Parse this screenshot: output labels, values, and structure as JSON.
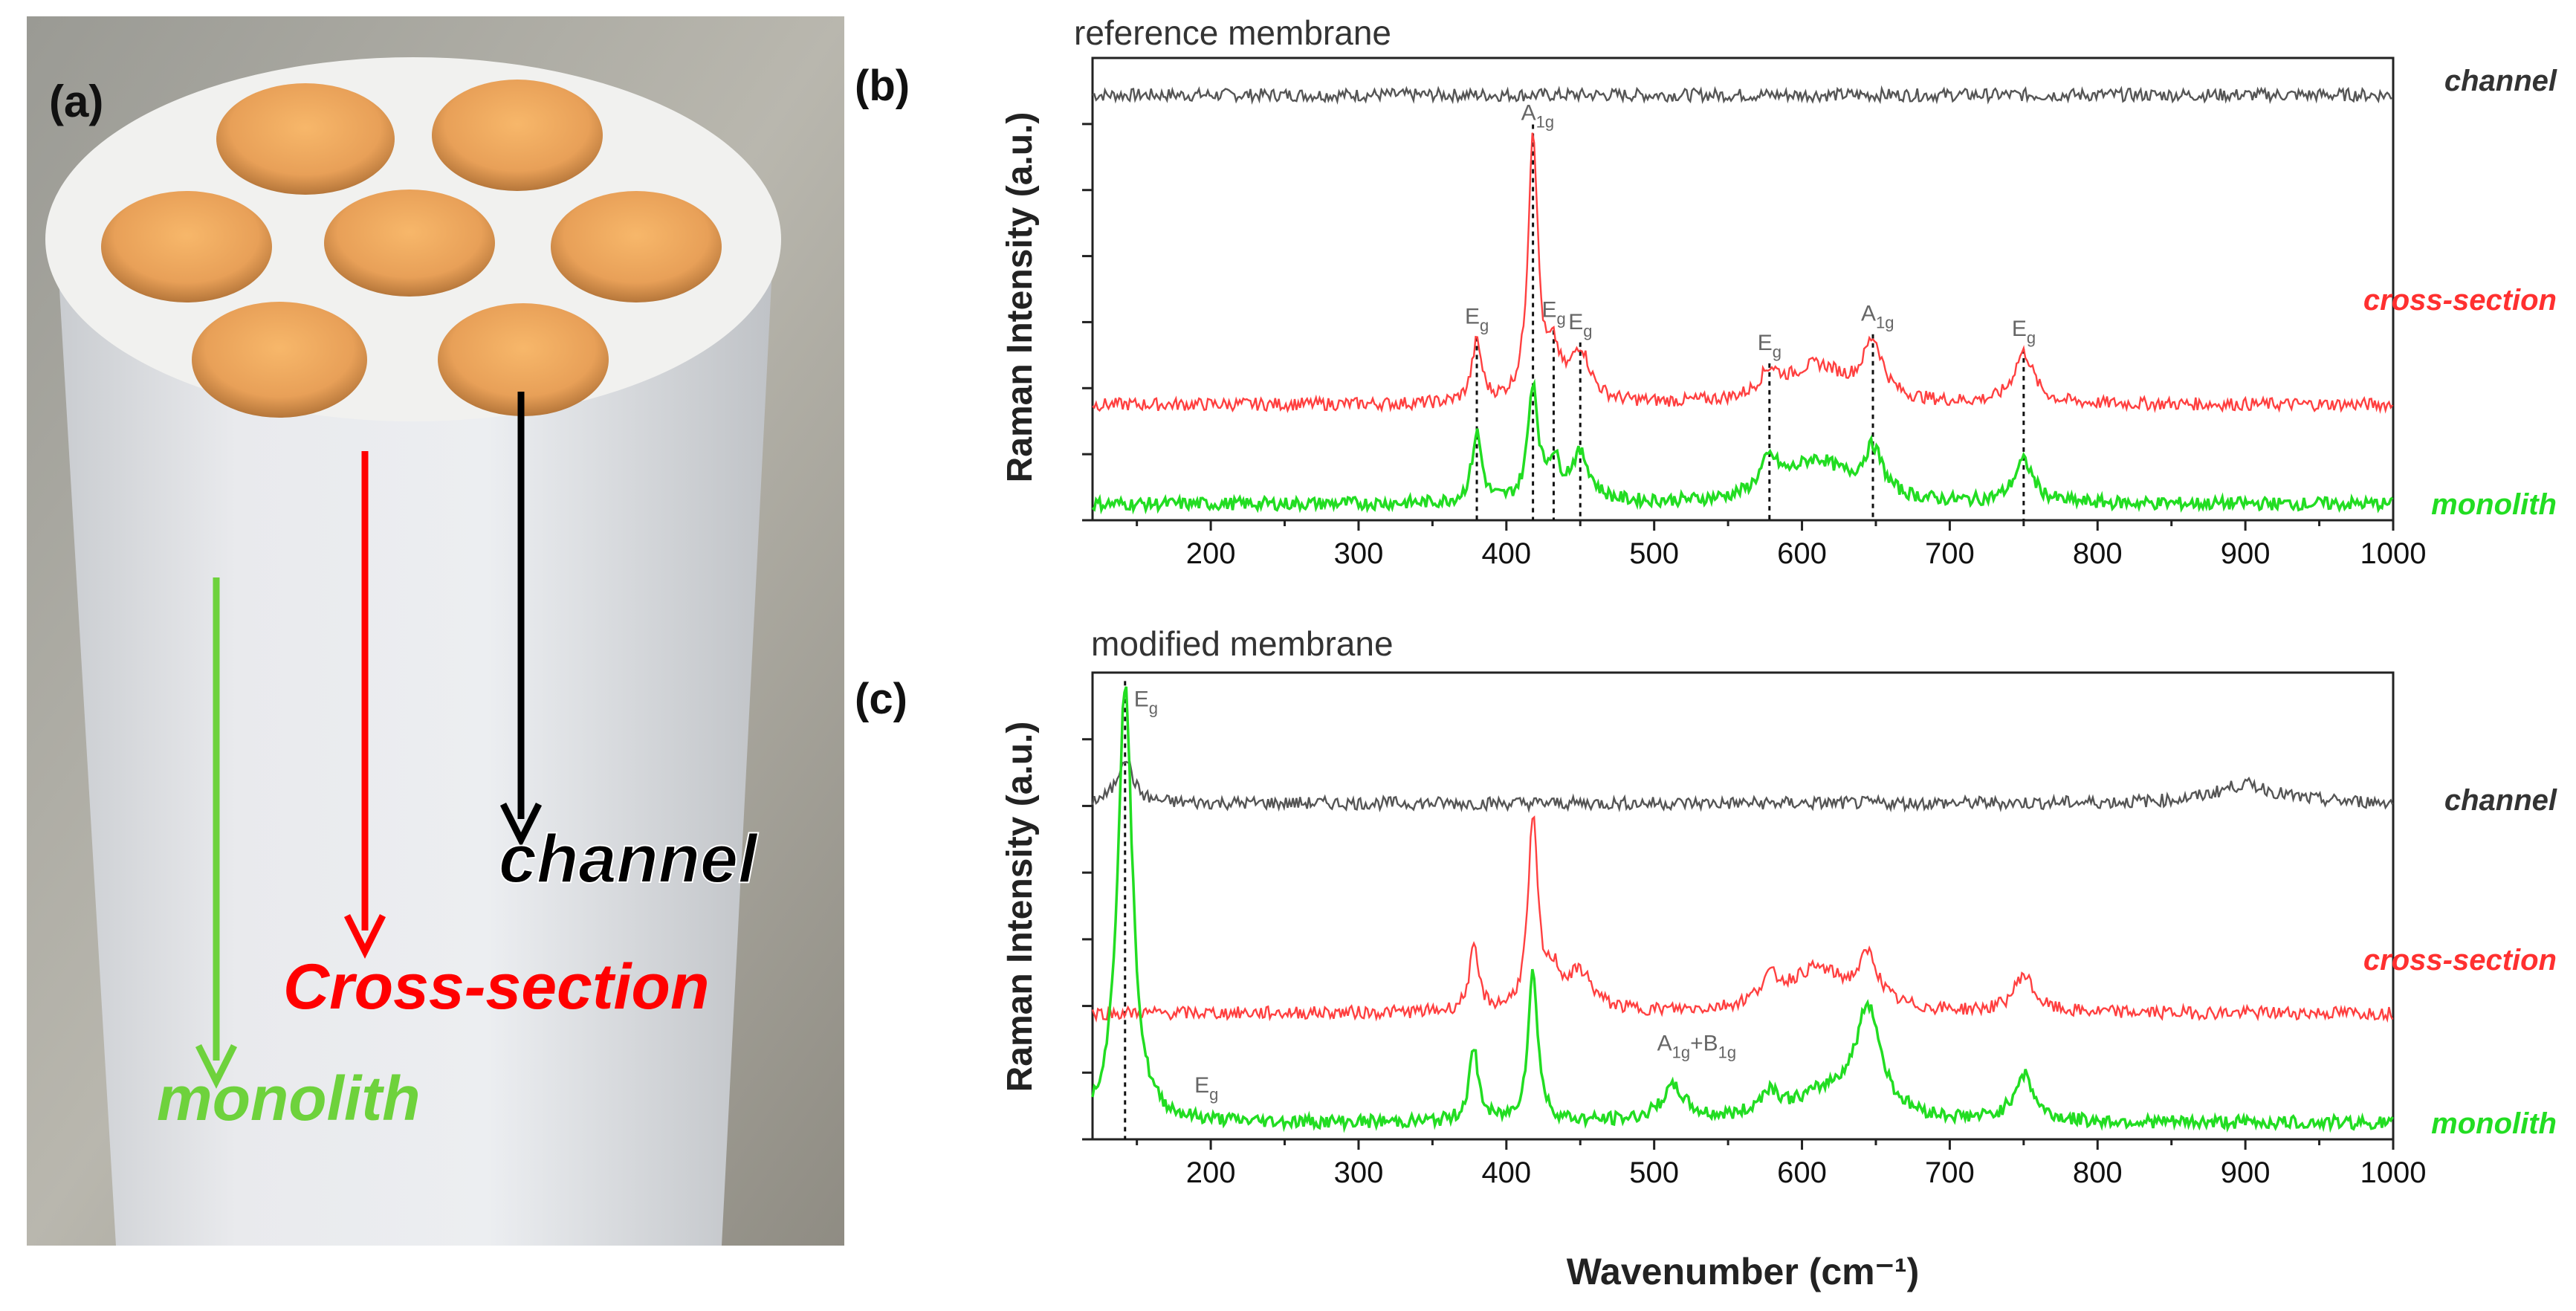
{
  "photo": {
    "panel_label": "(a)",
    "labels": {
      "channel": "channel",
      "cross_section": "Cross-section",
      "monolith": "monolith"
    },
    "colors": {
      "channel": "#000000",
      "cross_section": "#ff0000",
      "monolith": "#6ed23c"
    }
  },
  "chart_data": [
    {
      "type": "line",
      "panel_label": "(b)",
      "title": "reference membrane",
      "xlabel": "Wavenumber (cm⁻¹)",
      "ylabel": "Raman Intensity (a.u.)",
      "xlim": [
        120,
        1000
      ],
      "xticks": [
        200,
        300,
        400,
        500,
        600,
        700,
        800,
        900,
        1000
      ],
      "series": [
        {
          "name": "channel",
          "color": "#555555",
          "baseline": 0.92,
          "peaks": []
        },
        {
          "name": "cross-section",
          "color": "#ff4040",
          "baseline": 0.25,
          "peaks": [
            {
              "x": 380,
              "h": 0.13,
              "w": 4
            },
            {
              "x": 418,
              "h": 0.58,
              "w": 4
            },
            {
              "x": 432,
              "h": 0.09,
              "w": 5
            },
            {
              "x": 450,
              "h": 0.11,
              "w": 8
            },
            {
              "x": 578,
              "h": 0.05,
              "w": 8
            },
            {
              "x": 610,
              "h": 0.08,
              "w": 25
            },
            {
              "x": 648,
              "h": 0.12,
              "w": 8
            },
            {
              "x": 750,
              "h": 0.11,
              "w": 8
            }
          ]
        },
        {
          "name": "monolith",
          "color": "#22dd22",
          "baseline": 0.035,
          "peaks": [
            {
              "x": 380,
              "h": 0.15,
              "w": 4
            },
            {
              "x": 418,
              "h": 0.25,
              "w": 4
            },
            {
              "x": 432,
              "h": 0.08,
              "w": 5
            },
            {
              "x": 450,
              "h": 0.1,
              "w": 8
            },
            {
              "x": 578,
              "h": 0.07,
              "w": 8
            },
            {
              "x": 610,
              "h": 0.09,
              "w": 25
            },
            {
              "x": 648,
              "h": 0.1,
              "w": 8
            },
            {
              "x": 750,
              "h": 0.09,
              "w": 8
            }
          ]
        }
      ],
      "annotations": [
        {
          "x": 380,
          "main": "E",
          "sub": "g"
        },
        {
          "x": 418,
          "main": "A",
          "sub": "1g"
        },
        {
          "x": 432,
          "main": "E",
          "sub": "g"
        },
        {
          "x": 450,
          "main": "E",
          "sub": "g"
        },
        {
          "x": 578,
          "main": "E",
          "sub": "g"
        },
        {
          "x": 648,
          "main": "A",
          "sub": "1g"
        },
        {
          "x": 750,
          "main": "E",
          "sub": "g"
        }
      ],
      "dotted_lines": [
        380,
        418,
        432,
        450,
        578,
        648,
        750
      ]
    },
    {
      "type": "line",
      "panel_label": "(c)",
      "title": "modified membrane",
      "xlabel": "Wavenumber (cm⁻¹)",
      "ylabel": "Raman Intensity (a.u.)",
      "xlim": [
        120,
        1000
      ],
      "xticks": [
        200,
        300,
        400,
        500,
        600,
        700,
        800,
        900,
        1000
      ],
      "series": [
        {
          "name": "channel",
          "color": "#555555",
          "baseline": 0.72,
          "peaks": [
            {
              "x": 142,
              "h": 0.1,
              "w": 6
            },
            {
              "x": 900,
              "h": 0.04,
              "w": 25
            }
          ]
        },
        {
          "name": "cross-section",
          "color": "#ff4040",
          "baseline": 0.27,
          "peaks": [
            {
              "x": 378,
              "h": 0.13,
              "w": 4
            },
            {
              "x": 418,
              "h": 0.4,
              "w": 4
            },
            {
              "x": 432,
              "h": 0.07,
              "w": 6
            },
            {
              "x": 450,
              "h": 0.08,
              "w": 10
            },
            {
              "x": 578,
              "h": 0.05,
              "w": 8
            },
            {
              "x": 610,
              "h": 0.09,
              "w": 25
            },
            {
              "x": 645,
              "h": 0.1,
              "w": 8
            },
            {
              "x": 750,
              "h": 0.08,
              "w": 8
            }
          ]
        },
        {
          "name": "monolith",
          "color": "#22dd22",
          "baseline": 0.035,
          "peaks": [
            {
              "x": 142,
              "h": 0.94,
              "w": 6
            },
            {
              "x": 378,
              "h": 0.15,
              "w": 4
            },
            {
              "x": 418,
              "h": 0.32,
              "w": 4
            },
            {
              "x": 513,
              "h": 0.07,
              "w": 10
            },
            {
              "x": 578,
              "h": 0.05,
              "w": 8
            },
            {
              "x": 620,
              "h": 0.06,
              "w": 30
            },
            {
              "x": 645,
              "h": 0.22,
              "w": 10
            },
            {
              "x": 750,
              "h": 0.1,
              "w": 8
            }
          ]
        }
      ],
      "annotations": [
        {
          "x": 142,
          "main": "E",
          "sub": "g"
        },
        {
          "x": 197,
          "main": "E",
          "sub": "g"
        },
        {
          "x": 510,
          "main": "A",
          "sub": "1g",
          "extra_main": "+B",
          "extra_sub": "1g"
        }
      ],
      "dotted_lines": [
        142
      ]
    }
  ]
}
